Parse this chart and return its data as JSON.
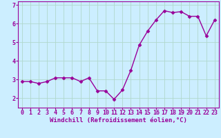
{
  "x": [
    0,
    1,
    2,
    3,
    4,
    5,
    6,
    7,
    8,
    9,
    10,
    11,
    12,
    13,
    14,
    15,
    16,
    17,
    18,
    19,
    20,
    21,
    22,
    23
  ],
  "y": [
    2.9,
    2.9,
    2.8,
    2.9,
    3.1,
    3.1,
    3.1,
    2.9,
    3.1,
    2.4,
    2.4,
    1.95,
    2.45,
    3.5,
    4.85,
    5.6,
    6.2,
    6.7,
    6.6,
    6.65,
    6.4,
    6.4,
    5.35,
    6.2
  ],
  "line_color": "#990099",
  "marker": "D",
  "markersize": 2.5,
  "linewidth": 1.0,
  "bg_color": "#cceeff",
  "grid_color": "#aaddcc",
  "xlabel": "Windchill (Refroidissement éolien,°C)",
  "ylim": [
    1.5,
    7.2
  ],
  "xlim": [
    -0.5,
    23.5
  ],
  "xticks": [
    0,
    1,
    2,
    3,
    4,
    5,
    6,
    7,
    8,
    9,
    10,
    11,
    12,
    13,
    14,
    15,
    16,
    17,
    18,
    19,
    20,
    21,
    22,
    23
  ],
  "yticks": [
    2,
    3,
    4,
    5,
    6,
    7
  ],
  "tick_color": "#990099",
  "label_color": "#990099",
  "xlabel_fontsize": 6.5,
  "tick_fontsize": 6.0,
  "spine_color": "#990099"
}
